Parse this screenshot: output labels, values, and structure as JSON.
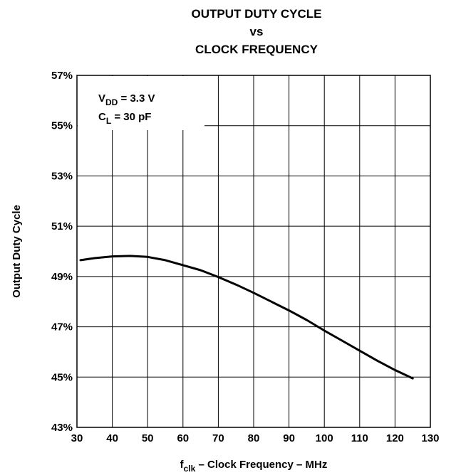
{
  "chart_data": {
    "type": "line",
    "title_lines": [
      "OUTPUT DUTY CYCLE",
      "vs",
      "CLOCK FREQUENCY"
    ],
    "xlabel": {
      "main": "f",
      "sub": "clk",
      "rest": " – Clock Frequency – MHz"
    },
    "ylabel": "Output Duty Cycle",
    "xlim": [
      30,
      130
    ],
    "ylim": [
      43,
      57
    ],
    "x_ticks": [
      30,
      40,
      50,
      60,
      70,
      80,
      90,
      100,
      110,
      120,
      130
    ],
    "y_ticks": [
      43,
      45,
      47,
      49,
      51,
      53,
      55,
      57
    ],
    "y_tick_labels": [
      "43%",
      "45%",
      "47%",
      "49%",
      "51%",
      "53%",
      "55%",
      "57%"
    ],
    "grid": true,
    "annotations": [
      {
        "main": "V",
        "sub": "DD",
        "rest": " = 3.3 V"
      },
      {
        "main": "C",
        "sub": "L",
        "rest": " = 30 pF"
      }
    ],
    "series": [
      {
        "x": [
          31,
          35,
          40,
          45,
          50,
          55,
          60,
          65,
          70,
          75,
          80,
          85,
          90,
          95,
          100,
          105,
          110,
          115,
          120,
          125
        ],
        "y": [
          49.65,
          49.73,
          49.8,
          49.82,
          49.78,
          49.65,
          49.45,
          49.25,
          48.98,
          48.68,
          48.35,
          48.0,
          47.65,
          47.27,
          46.85,
          46.45,
          46.05,
          45.65,
          45.28,
          44.95
        ]
      }
    ]
  }
}
